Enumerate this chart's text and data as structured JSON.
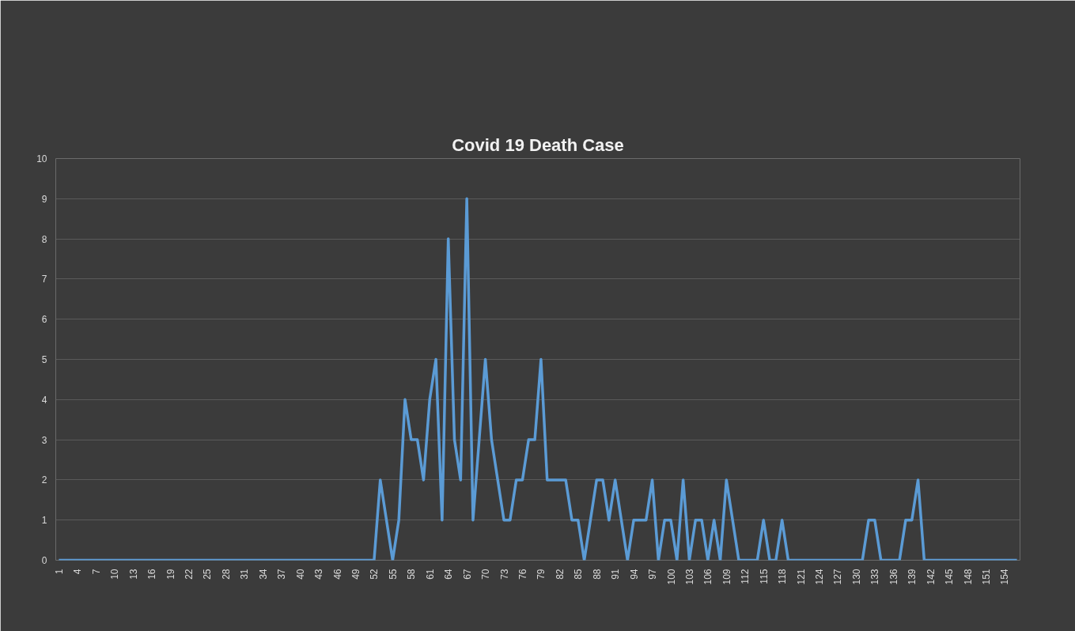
{
  "chart_data": {
    "type": "line",
    "title": "Covid 19 Death Case",
    "x": [
      1,
      2,
      3,
      4,
      5,
      6,
      7,
      8,
      9,
      10,
      11,
      12,
      13,
      14,
      15,
      16,
      17,
      18,
      19,
      20,
      21,
      22,
      23,
      24,
      25,
      26,
      27,
      28,
      29,
      30,
      31,
      32,
      33,
      34,
      35,
      36,
      37,
      38,
      39,
      40,
      41,
      42,
      43,
      44,
      45,
      46,
      47,
      48,
      49,
      50,
      51,
      52,
      53,
      54,
      55,
      56,
      57,
      58,
      59,
      60,
      61,
      62,
      63,
      64,
      65,
      66,
      67,
      68,
      69,
      70,
      71,
      72,
      73,
      74,
      75,
      76,
      77,
      78,
      79,
      80,
      81,
      82,
      83,
      84,
      85,
      86,
      87,
      88,
      89,
      90,
      91,
      92,
      93,
      94,
      95,
      96,
      97,
      98,
      99,
      100,
      101,
      102,
      103,
      104,
      105,
      106,
      107,
      108,
      109,
      110,
      111,
      112,
      113,
      114,
      115,
      116,
      117,
      118,
      119,
      120,
      121,
      122,
      123,
      124,
      125,
      126,
      127,
      128,
      129,
      130,
      131,
      132,
      133,
      134,
      135,
      136,
      137,
      138,
      139,
      140,
      141,
      142,
      143,
      144,
      145,
      146,
      147,
      148,
      149,
      150,
      151,
      152,
      153,
      154,
      155,
      156
    ],
    "series": [
      {
        "color": "#5b9bd5",
        "values": [
          0,
          0,
          0,
          0,
          0,
          0,
          0,
          0,
          0,
          0,
          0,
          0,
          0,
          0,
          0,
          0,
          0,
          0,
          0,
          0,
          0,
          0,
          0,
          0,
          0,
          0,
          0,
          0,
          0,
          0,
          0,
          0,
          0,
          0,
          0,
          0,
          0,
          0,
          0,
          0,
          0,
          0,
          0,
          0,
          0,
          0,
          0,
          0,
          0,
          0,
          0,
          0,
          2,
          1,
          0,
          1,
          4,
          3,
          3,
          2,
          4,
          5,
          1,
          8,
          3,
          2,
          9,
          1,
          3,
          5,
          3,
          2,
          1,
          1,
          2,
          2,
          3,
          3,
          5,
          2,
          2,
          2,
          2,
          1,
          1,
          0,
          1,
          2,
          2,
          1,
          2,
          1,
          0,
          1,
          1,
          1,
          2,
          0,
          1,
          1,
          0,
          2,
          0,
          1,
          1,
          0,
          1,
          0,
          2,
          1,
          0,
          0,
          0,
          0,
          1,
          0,
          0,
          1,
          0,
          0,
          0,
          0,
          0,
          0,
          0,
          0,
          0,
          0,
          0,
          0,
          0,
          1,
          1,
          0,
          0,
          0,
          0,
          1,
          1,
          2,
          0,
          0,
          0,
          0,
          0,
          0,
          0,
          0,
          0,
          0,
          0,
          0,
          0,
          0,
          0,
          0
        ]
      }
    ],
    "xlim": [
      0.5,
      156.5
    ],
    "xticks": [
      1,
      4,
      7,
      10,
      13,
      16,
      19,
      22,
      25,
      28,
      31,
      34,
      37,
      40,
      43,
      46,
      49,
      52,
      55,
      58,
      61,
      64,
      67,
      70,
      73,
      76,
      79,
      82,
      85,
      88,
      91,
      94,
      97,
      100,
      103,
      106,
      109,
      112,
      115,
      118,
      121,
      124,
      127,
      130,
      133,
      136,
      139,
      142,
      145,
      148,
      151,
      154
    ],
    "ylim": [
      0,
      10
    ],
    "yticks": [
      0,
      1,
      2,
      3,
      4,
      5,
      6,
      7,
      8,
      9,
      10
    ],
    "grid": "y",
    "marker": "none",
    "line_style": "solid"
  }
}
